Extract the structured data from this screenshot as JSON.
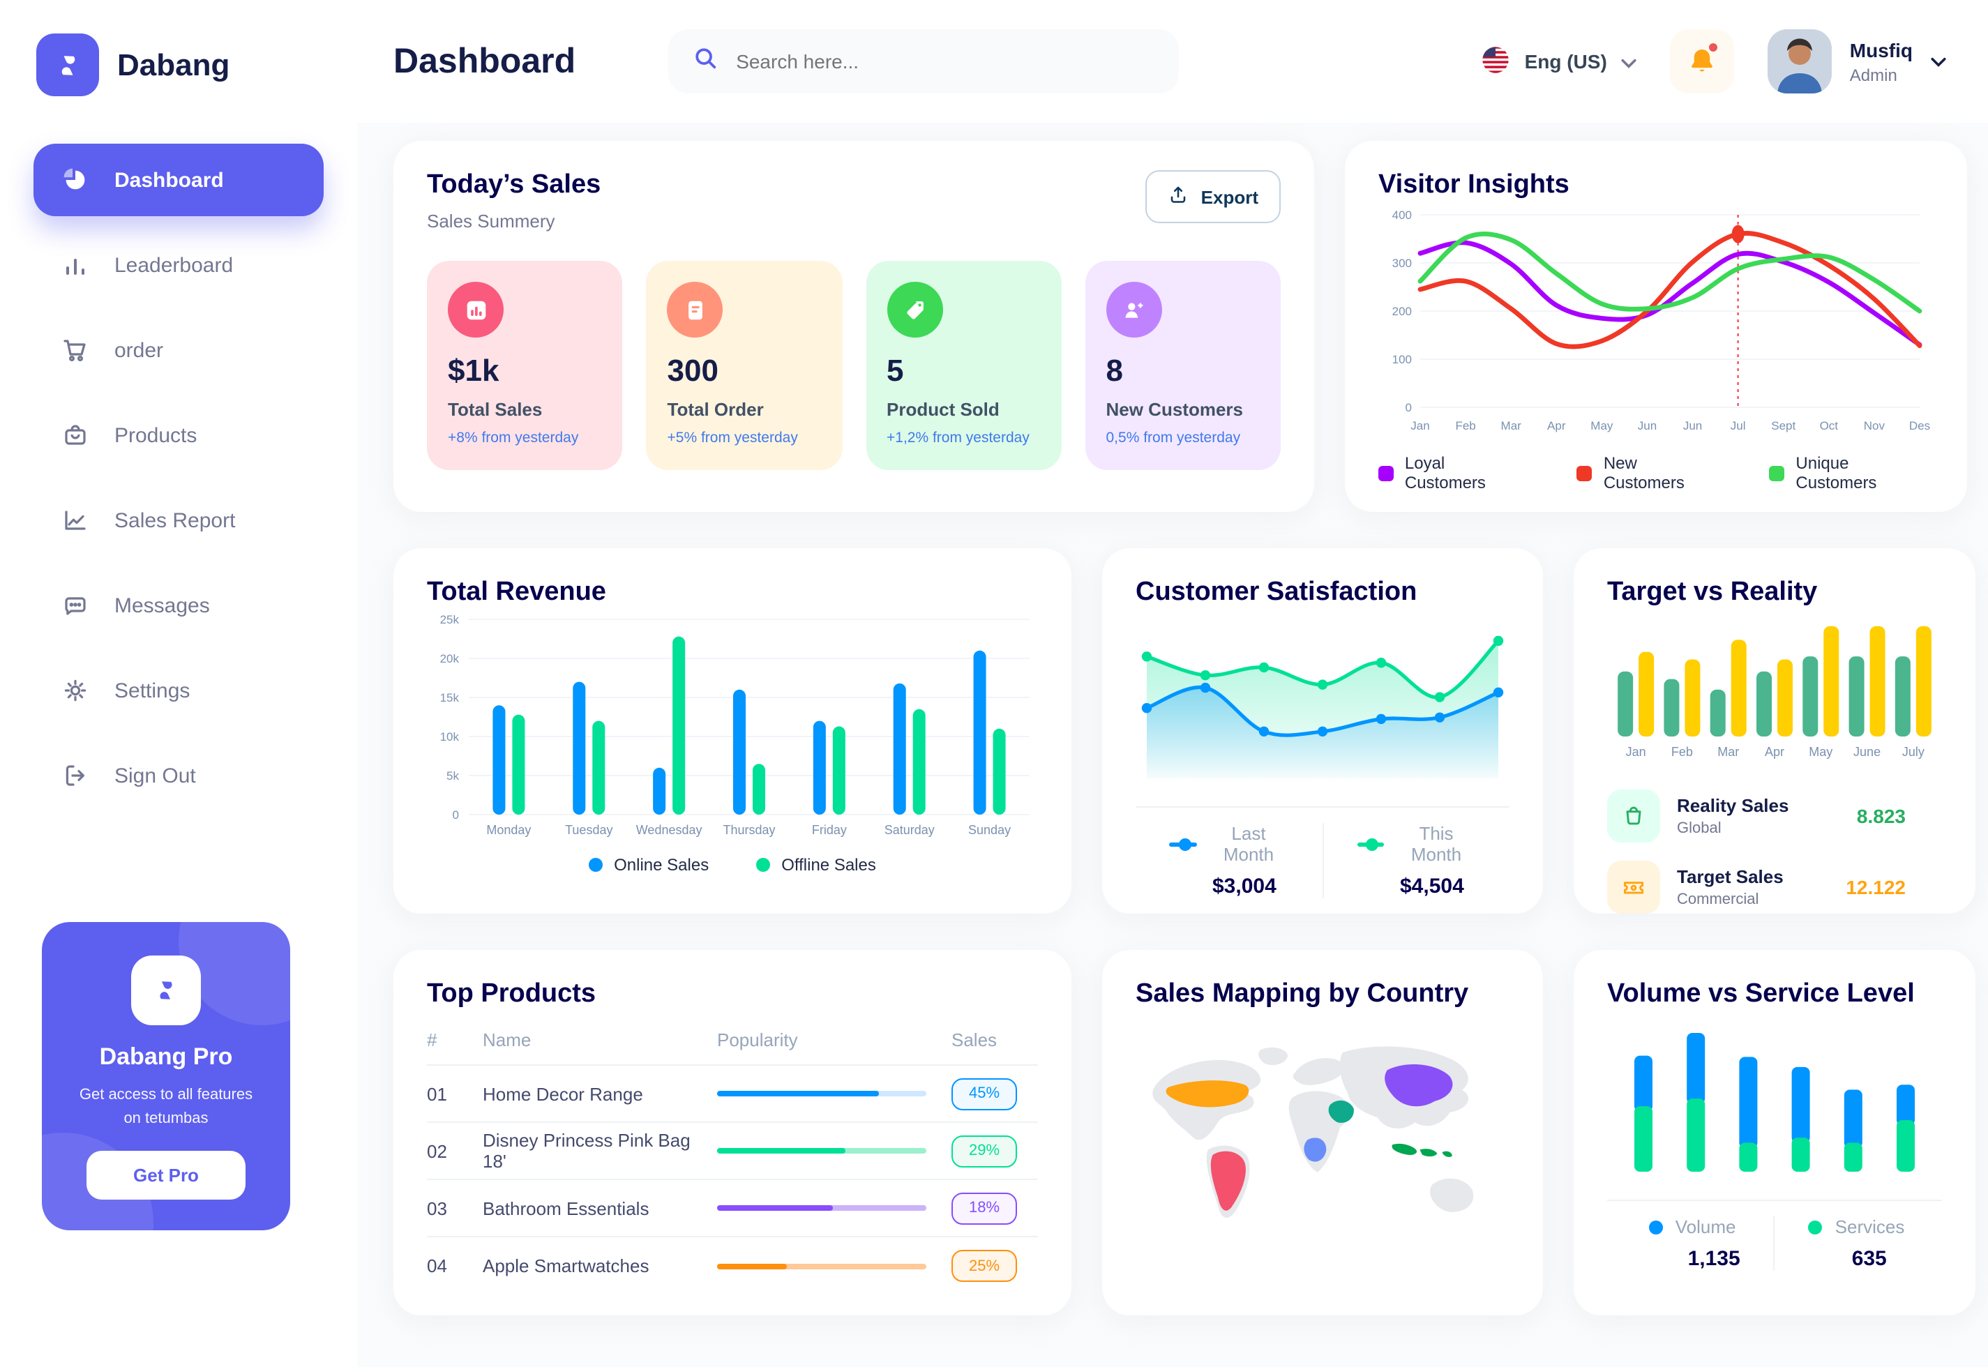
{
  "colors": {
    "accent": "#5D5FEF",
    "heading": "#151D48",
    "navy": "#05004E",
    "muted": "#737791",
    "axis": "#7B91B0",
    "delta": "#4079ED",
    "bg": "#FAFBFC"
  },
  "brand": {
    "name": "Dabang"
  },
  "topbar": {
    "title": "Dashboard",
    "search_placeholder": "Search here...",
    "language": "Eng (US)",
    "user_name": "Musfiq",
    "user_role": "Admin"
  },
  "sidebar": {
    "items": [
      {
        "label": "Dashboard",
        "active": true
      },
      {
        "label": "Leaderboard",
        "active": false
      },
      {
        "label": "order",
        "active": false
      },
      {
        "label": "Products",
        "active": false
      },
      {
        "label": "Sales Report",
        "active": false
      },
      {
        "label": "Messages",
        "active": false
      },
      {
        "label": "Settings",
        "active": false
      },
      {
        "label": "Sign Out",
        "active": false
      }
    ],
    "pro": {
      "title": "Dabang Pro",
      "desc": "Get access to all features on tetumbas",
      "button": "Get Pro"
    }
  },
  "todays_sales": {
    "title": "Today’s Sales",
    "subtitle": "Sales Summery",
    "export_label": "Export",
    "cards": [
      {
        "value": "$1k",
        "label": "Total Sales",
        "delta": "+8% from yesterday",
        "bg": "#FFE2E5",
        "icon_bg": "#FA5A7D"
      },
      {
        "value": "300",
        "label": "Total Order",
        "delta": "+5% from yesterday",
        "bg": "#FFF4DE",
        "icon_bg": "#FF947A"
      },
      {
        "value": "5",
        "label": "Product Sold",
        "delta": "+1,2% from yesterday",
        "bg": "#DCFCE7",
        "icon_bg": "#3CD856"
      },
      {
        "value": "8",
        "label": "New Customers",
        "delta": "0,5% from yesterday",
        "bg": "#F3E8FF",
        "icon_bg": "#BF83FF"
      }
    ]
  },
  "chart_data": [
    {
      "id": "visitor-insights",
      "type": "line",
      "title": "Visitor Insights",
      "x": [
        "Jan",
        "Feb",
        "Mar",
        "Apr",
        "May",
        "Jun",
        "Jun",
        "Jul",
        "Sept",
        "Oct",
        "Nov",
        "Des"
      ],
      "y_ticks": [
        [
          0,
          "0"
        ],
        [
          100,
          "100"
        ],
        [
          200,
          "200"
        ],
        [
          300,
          "300"
        ],
        [
          400,
          "400"
        ]
      ],
      "ylim": [
        0,
        400
      ],
      "grid": true,
      "legend_position": "bottom",
      "series": [
        {
          "name": "Loyal Customers",
          "color": "#A700FF",
          "values": [
            320,
            342,
            298,
            212,
            185,
            192,
            258,
            318,
            302,
            260,
            196,
            130
          ]
        },
        {
          "name": "New Customers",
          "color": "#EF3826",
          "values": [
            245,
            262,
            205,
            132,
            138,
            200,
            302,
            360,
            342,
            295,
            225,
            128
          ]
        },
        {
          "name": "Unique Customers",
          "color": "#3CD856",
          "values": [
            262,
            352,
            348,
            278,
            215,
            205,
            228,
            288,
            308,
            312,
            265,
            200
          ]
        }
      ],
      "annotation": {
        "vline_label": "Jul",
        "vline_index": 7,
        "marker_series": 1,
        "marker_value": 360
      }
    },
    {
      "id": "total-revenue",
      "type": "bar",
      "title": "Total Revenue",
      "categories": [
        "Monday",
        "Tuesday",
        "Wednesday",
        "Thursday",
        "Friday",
        "Saturday",
        "Sunday"
      ],
      "y_ticks": [
        [
          0,
          "0"
        ],
        [
          5000,
          "5k"
        ],
        [
          10000,
          "10k"
        ],
        [
          15000,
          "15k"
        ],
        [
          20000,
          "20k"
        ],
        [
          25000,
          "25k"
        ]
      ],
      "ylim": [
        0,
        25000
      ],
      "grid": true,
      "legend_position": "bottom",
      "series": [
        {
          "name": "Online Sales",
          "color": "#0095FF",
          "values": [
            14000,
            17000,
            6000,
            16000,
            12000,
            16800,
            21000
          ]
        },
        {
          "name": "Offline Sales",
          "color": "#00E096",
          "values": [
            12800,
            12000,
            22800,
            6500,
            11300,
            13500,
            11000
          ]
        }
      ]
    },
    {
      "id": "customer-satisfaction",
      "type": "area",
      "title": "Customer Satisfaction",
      "ylim": [
        0,
        100
      ],
      "grid": false,
      "legend_position": "bottom",
      "series": [
        {
          "name": "Last Month",
          "color": "#0095FF",
          "total": "$3,004",
          "values": [
            45,
            58,
            30,
            30,
            38,
            39,
            55
          ]
        },
        {
          "name": "This Month",
          "color": "#00E096",
          "total": "$4,504",
          "values": [
            78,
            66,
            71,
            60,
            74,
            52,
            88
          ]
        }
      ]
    },
    {
      "id": "target-vs-reality",
      "type": "bar",
      "title": "Target vs Reality",
      "categories": [
        "Jan",
        "Feb",
        "Mar",
        "Apr",
        "May",
        "June",
        "July"
      ],
      "ylim": [
        0,
        15.5
      ],
      "grid": false,
      "legend_position": "rows",
      "series": [
        {
          "name": "Reality Sales",
          "color": "#4AB58E",
          "values": [
            8.6,
            7.6,
            6.2,
            8.6,
            10.6,
            10.6,
            10.6
          ]
        },
        {
          "name": "Target Sales",
          "color": "#FFCF00",
          "values": [
            11.2,
            10.2,
            12.8,
            10.2,
            14.6,
            14.6,
            14.6
          ]
        }
      ],
      "legend_rows": [
        {
          "label": "Reality Sales",
          "sub": "Global",
          "value": "8.823",
          "value_color": "#27AE60",
          "icon_bg": "#E2FFF3",
          "icon_color": "#27AE60",
          "icon": "shopping-bag-icon"
        },
        {
          "label": "Target Sales",
          "sub": "Commercial",
          "value": "12.122",
          "value_color": "#FFA412",
          "icon_bg": "#FFF4DE",
          "icon_color": "#FFA412",
          "icon": "ticket-icon"
        }
      ]
    },
    {
      "id": "volume-vs-service",
      "type": "stacked_bar",
      "title": "Volume vs Service Level",
      "ylim": [
        0,
        115
      ],
      "legend_position": "bottom",
      "series": [
        {
          "name": "Volume",
          "color": "#0095FF",
          "total": "1,135",
          "values": [
            40,
            52,
            68,
            56,
            42,
            28
          ]
        },
        {
          "name": "Services",
          "color": "#00E096",
          "total": "635",
          "values": [
            52,
            58,
            23,
            27,
            23,
            41
          ]
        }
      ]
    }
  ],
  "top_products": {
    "title": "Top Products",
    "headers": [
      "#",
      "Name",
      "Popularity",
      "Sales"
    ],
    "rows": [
      {
        "num": "01",
        "name": "Home Decor Range",
        "fill_pct": 77,
        "color": "#0095FF",
        "track": "#CFE7FF",
        "badge": "45%",
        "badge_bg": "#F0F9FF"
      },
      {
        "num": "02",
        "name": "Disney Princess Pink Bag 18'",
        "fill_pct": 61,
        "color": "#00E096",
        "track": "#9BF0CD",
        "badge": "29%",
        "badge_bg": "#EEFBF4"
      },
      {
        "num": "03",
        "name": "Bathroom Essentials",
        "fill_pct": 55,
        "color": "#884DFF",
        "track": "#CBB2F9",
        "badge": "18%",
        "badge_bg": "#F9F4FF"
      },
      {
        "num": "04",
        "name": "Apple Smartwatches",
        "fill_pct": 33,
        "color": "#FF8F0D",
        "track": "#FFC998",
        "badge": "25%",
        "badge_bg": "#FFF5E8"
      }
    ]
  },
  "sales_map": {
    "title": "Sales Mapping by Country",
    "highlights": [
      {
        "region": "United States",
        "color": "#FFA412"
      },
      {
        "region": "Brazil",
        "color": "#F4516C"
      },
      {
        "region": "Saudi Arabia",
        "color": "#0FA98B"
      },
      {
        "region": "DR Congo",
        "color": "#6A8EF9"
      },
      {
        "region": "China",
        "color": "#8A50F7"
      },
      {
        "region": "Indonesia",
        "color": "#00A651"
      }
    ]
  }
}
